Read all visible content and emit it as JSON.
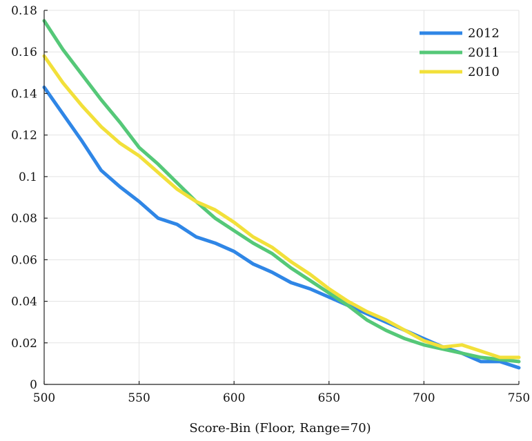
{
  "chart_data": {
    "type": "line",
    "title": "",
    "xlabel": "Score-Bin (Floor, Range=70)",
    "ylabel": "",
    "xlim": [
      500,
      750
    ],
    "ylim": [
      0,
      0.18
    ],
    "xticks": [
      "500",
      "550",
      "600",
      "650",
      "700",
      "750"
    ],
    "yticks": [
      "0",
      "0.02",
      "0.04",
      "0.06",
      "0.08",
      "0.1",
      "0.12",
      "0.14",
      "0.16",
      "0.18"
    ],
    "grid": true,
    "legend_position": "top-right",
    "x": [
      500,
      510,
      520,
      530,
      540,
      550,
      560,
      570,
      580,
      590,
      600,
      610,
      620,
      630,
      640,
      650,
      660,
      670,
      680,
      690,
      700,
      710,
      720,
      730,
      740,
      750
    ],
    "series": [
      {
        "name": "2012",
        "color": "#2f86e6",
        "values": [
          0.143,
          0.13,
          0.117,
          0.103,
          0.095,
          0.088,
          0.08,
          0.077,
          0.071,
          0.068,
          0.064,
          0.058,
          0.054,
          0.049,
          0.046,
          0.042,
          0.038,
          0.034,
          0.03,
          0.026,
          0.022,
          0.018,
          0.015,
          0.011,
          0.011,
          0.008
        ]
      },
      {
        "name": "2011",
        "color": "#55c878",
        "values": [
          0.175,
          0.161,
          0.149,
          0.137,
          0.126,
          0.114,
          0.106,
          0.097,
          0.088,
          0.08,
          0.074,
          0.068,
          0.063,
          0.056,
          0.05,
          0.044,
          0.038,
          0.031,
          0.026,
          0.022,
          0.019,
          0.017,
          0.015,
          0.013,
          0.012,
          0.011
        ]
      },
      {
        "name": "2010",
        "color": "#f2e03a",
        "values": [
          0.158,
          0.145,
          0.134,
          0.124,
          0.116,
          0.11,
          0.102,
          0.094,
          0.088,
          0.084,
          0.078,
          0.071,
          0.066,
          0.059,
          0.053,
          0.046,
          0.04,
          0.035,
          0.031,
          0.026,
          0.021,
          0.018,
          0.019,
          0.016,
          0.013,
          0.013
        ]
      }
    ]
  }
}
